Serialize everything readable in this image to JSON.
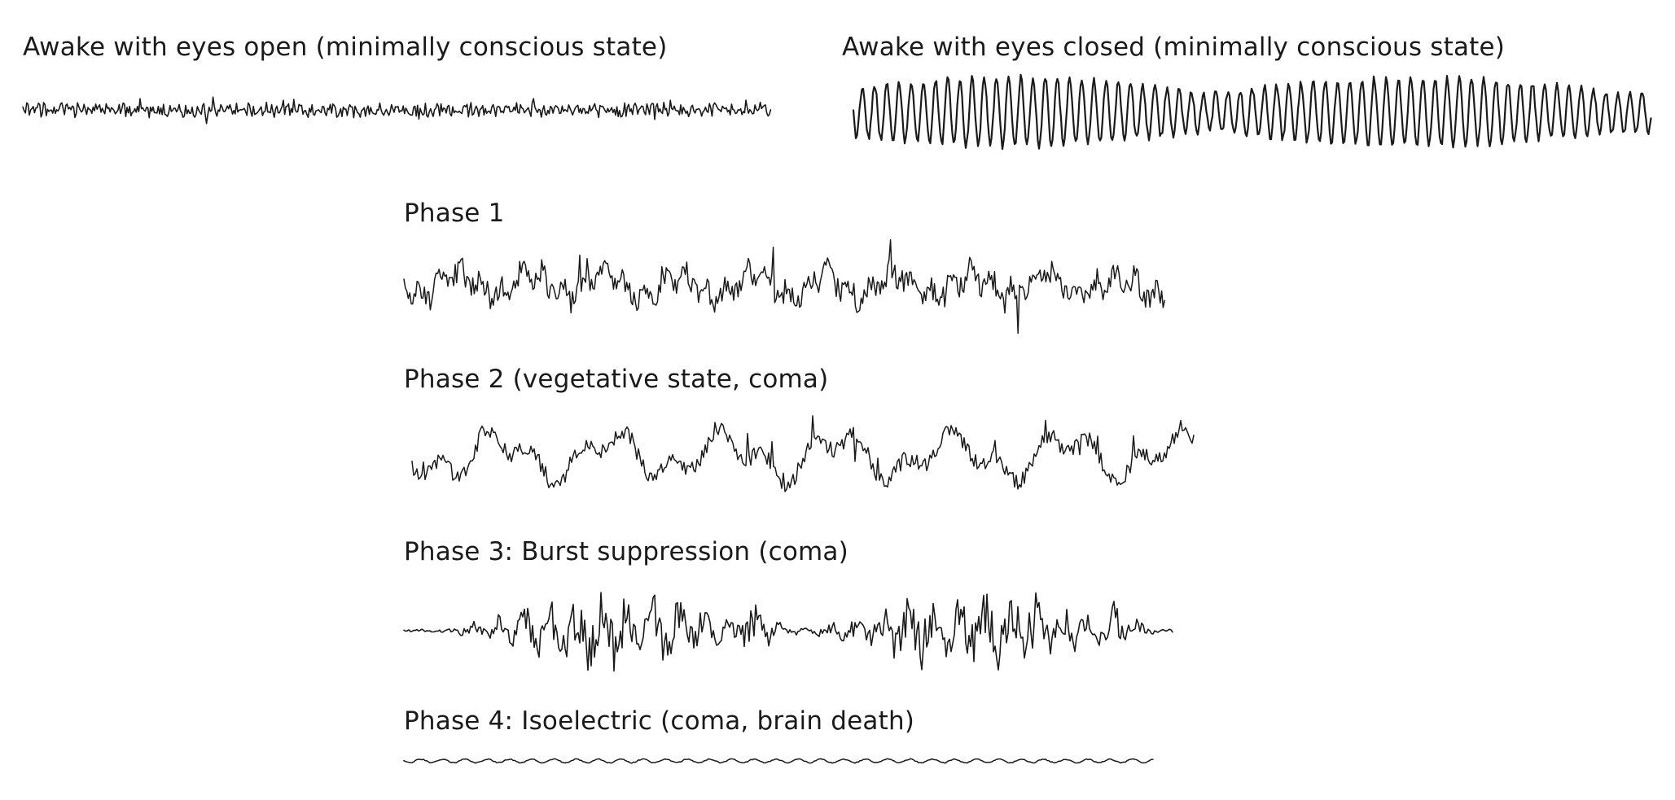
{
  "panels": {
    "awake_open": {
      "label": "Awake with eyes open (minimally conscious state)"
    },
    "awake_closed": {
      "label": "Awake with eyes closed (minimally conscious state)"
    },
    "phase1": {
      "label": "Phase 1"
    },
    "phase2": {
      "label": "Phase 2 (vegetative state, coma)"
    },
    "phase3": {
      "label": "Phase 3: Burst suppression (coma)"
    },
    "phase4": {
      "label": "Phase 4: Isoelectric (coma, brain death)"
    }
  },
  "colors": {
    "trace": "#1a1a1a",
    "background": "#ffffff"
  }
}
